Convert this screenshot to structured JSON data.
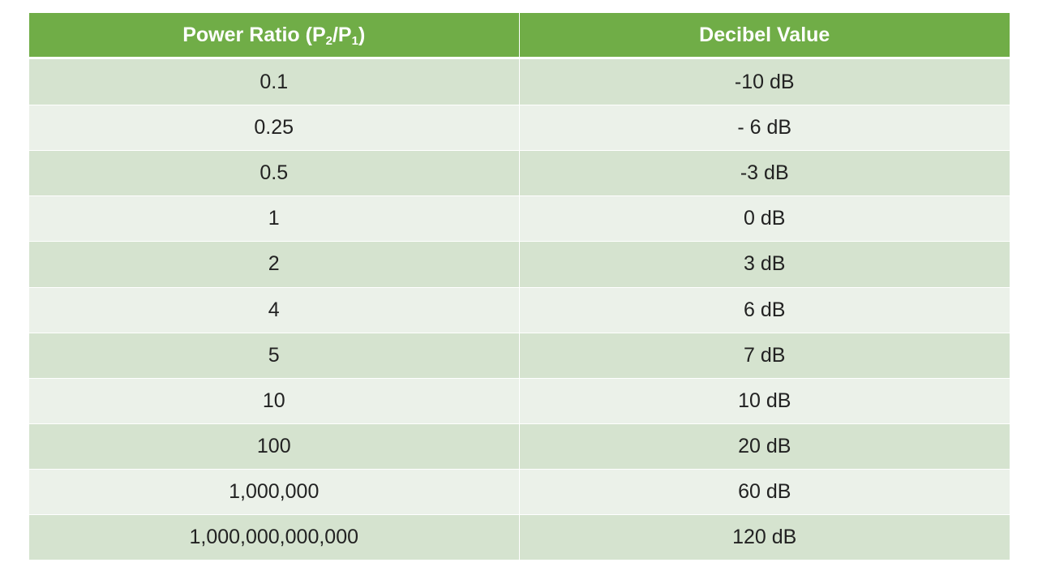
{
  "table": {
    "headers": {
      "col1_main": "Power Ratio (P",
      "col1_sub1": "2",
      "col1_slash": "/P",
      "col1_sub2": "1",
      "col1_close": ")",
      "col2": "Decibel Value"
    },
    "header_color": "#70ad47",
    "row_colors": [
      "#d5e3cf",
      "#ebf1e9"
    ],
    "rows": [
      {
        "ratio": "0.1",
        "db": "-10 dB"
      },
      {
        "ratio": "0.25",
        "db": "- 6 dB"
      },
      {
        "ratio": "0.5",
        "db": "-3 dB"
      },
      {
        "ratio": "1",
        "db": "0 dB"
      },
      {
        "ratio": "2",
        "db": "3 dB"
      },
      {
        "ratio": "4",
        "db": "6 dB"
      },
      {
        "ratio": "5",
        "db": "7 dB"
      },
      {
        "ratio": "10",
        "db": "10 dB"
      },
      {
        "ratio": "100",
        "db": "20 dB"
      },
      {
        "ratio": "1,000,000",
        "db": "60 dB"
      },
      {
        "ratio": "1,000,000,000,000",
        "db": "120 dB"
      }
    ]
  }
}
